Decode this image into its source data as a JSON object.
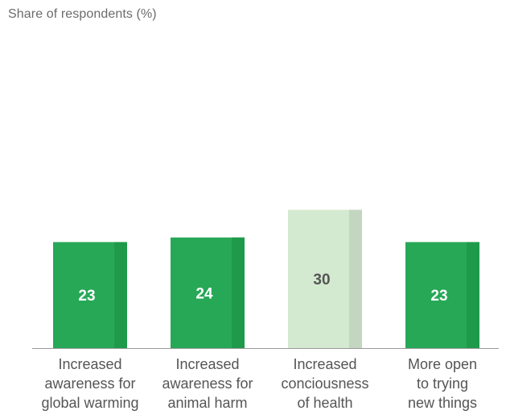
{
  "chart_data": {
    "type": "bar",
    "title": "",
    "subtitle": "Share of respondents (%)",
    "xlabel": "",
    "ylabel": "",
    "ylim": [
      0,
      35
    ],
    "grid": false,
    "legend": "none",
    "categories": [
      [
        "Increased",
        "awareness for",
        "global warming"
      ],
      [
        "Increased",
        "awareness for",
        "animal harm"
      ],
      [
        "Increased",
        "conciousness",
        "of health"
      ],
      [
        "More open",
        "to trying",
        "new things"
      ]
    ],
    "values": [
      23,
      24,
      30,
      23
    ],
    "value_labels": [
      "23",
      "24",
      "30",
      "23"
    ],
    "highlight_index": 2,
    "colors": {
      "bar": "#27a857",
      "bar_shade": "#1f9a4a",
      "bar_highlight": "#d4ead0",
      "bar_highlight_shade": "#c3d6c0",
      "label_on_bar": "#ffffff",
      "label_on_highlight": "#555555",
      "axis": "#9a9a9a"
    }
  }
}
